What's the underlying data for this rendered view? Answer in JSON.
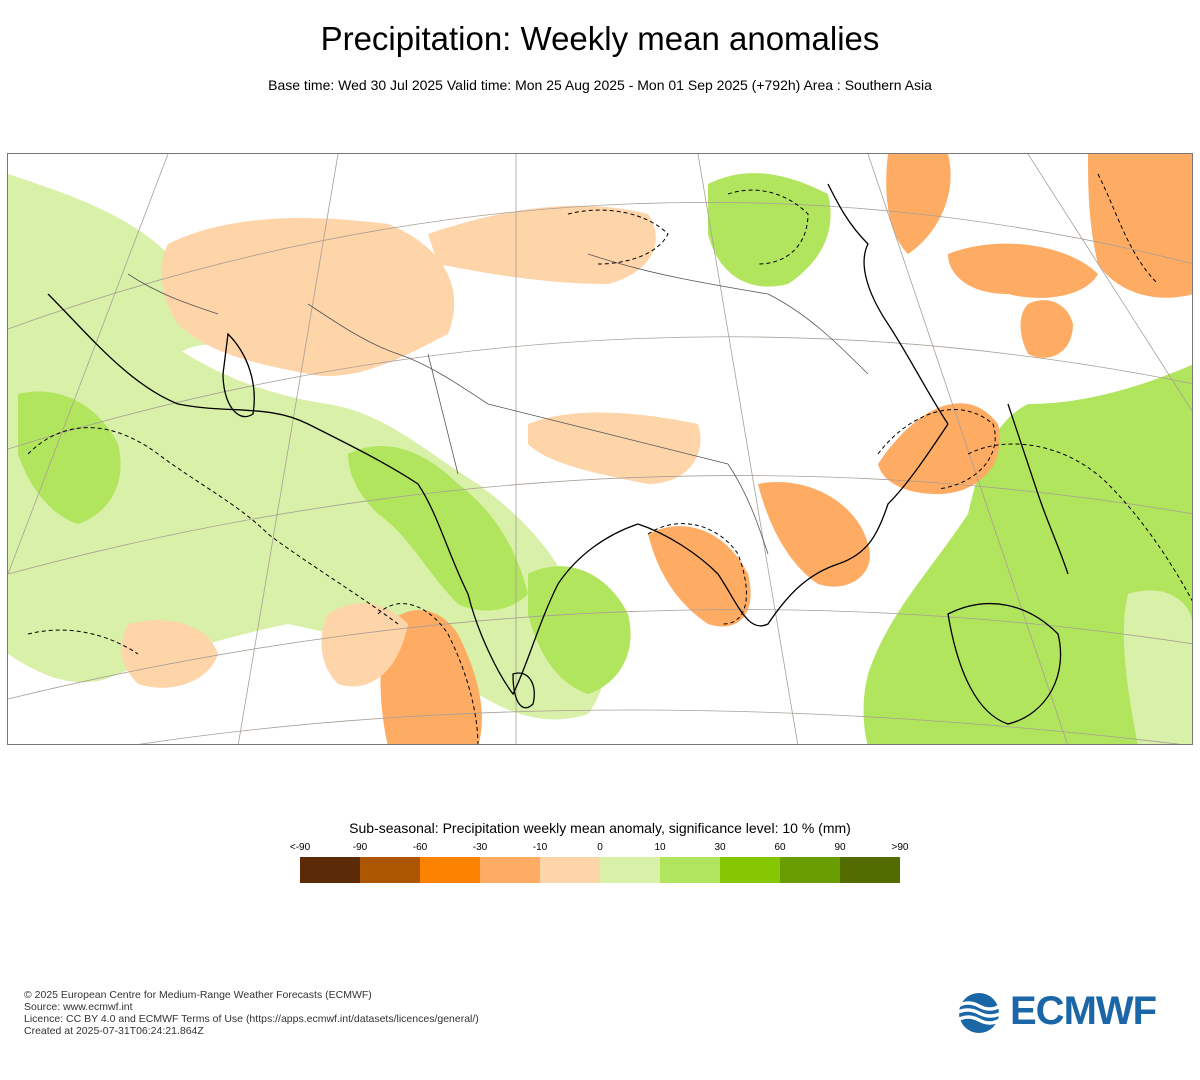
{
  "header": {
    "title": "Precipitation: Weekly mean anomalies",
    "subtitle": "Base time: Wed 30 Jul 2025 Valid time: Mon 25 Aug 2025 - Mon 01 Sep 2025 (+792h) Area : Southern Asia"
  },
  "legend": {
    "title": "Sub-seasonal: Precipitation weekly mean anomaly, significance level: 10 % (mm)",
    "ticks": [
      "<-90",
      "-90",
      "-60",
      "-30",
      "-10",
      "0",
      "10",
      "30",
      "60",
      "90",
      ">90"
    ],
    "colors": [
      "#5a2b06",
      "#ad5602",
      "#fe8201",
      "#feac63",
      "#fed4a9",
      "#d8f0a7",
      "#b2e55e",
      "#86c704",
      "#6a9d02",
      "#536c00"
    ]
  },
  "footer": {
    "copyright": "© 2025 European Centre for Medium-Range Weather Forecasts (ECMWF)",
    "source": "Source: www.ecmwf.int",
    "licence": "Licence: CC BY 4.0 and ECMWF Terms of Use (https://apps.ecmwf.int/datasets/licences/general/)",
    "created": "Created at 2025-07-31T06:24:21.864Z"
  },
  "logo": {
    "text": "ECMWF",
    "color": "#1b66a6"
  }
}
